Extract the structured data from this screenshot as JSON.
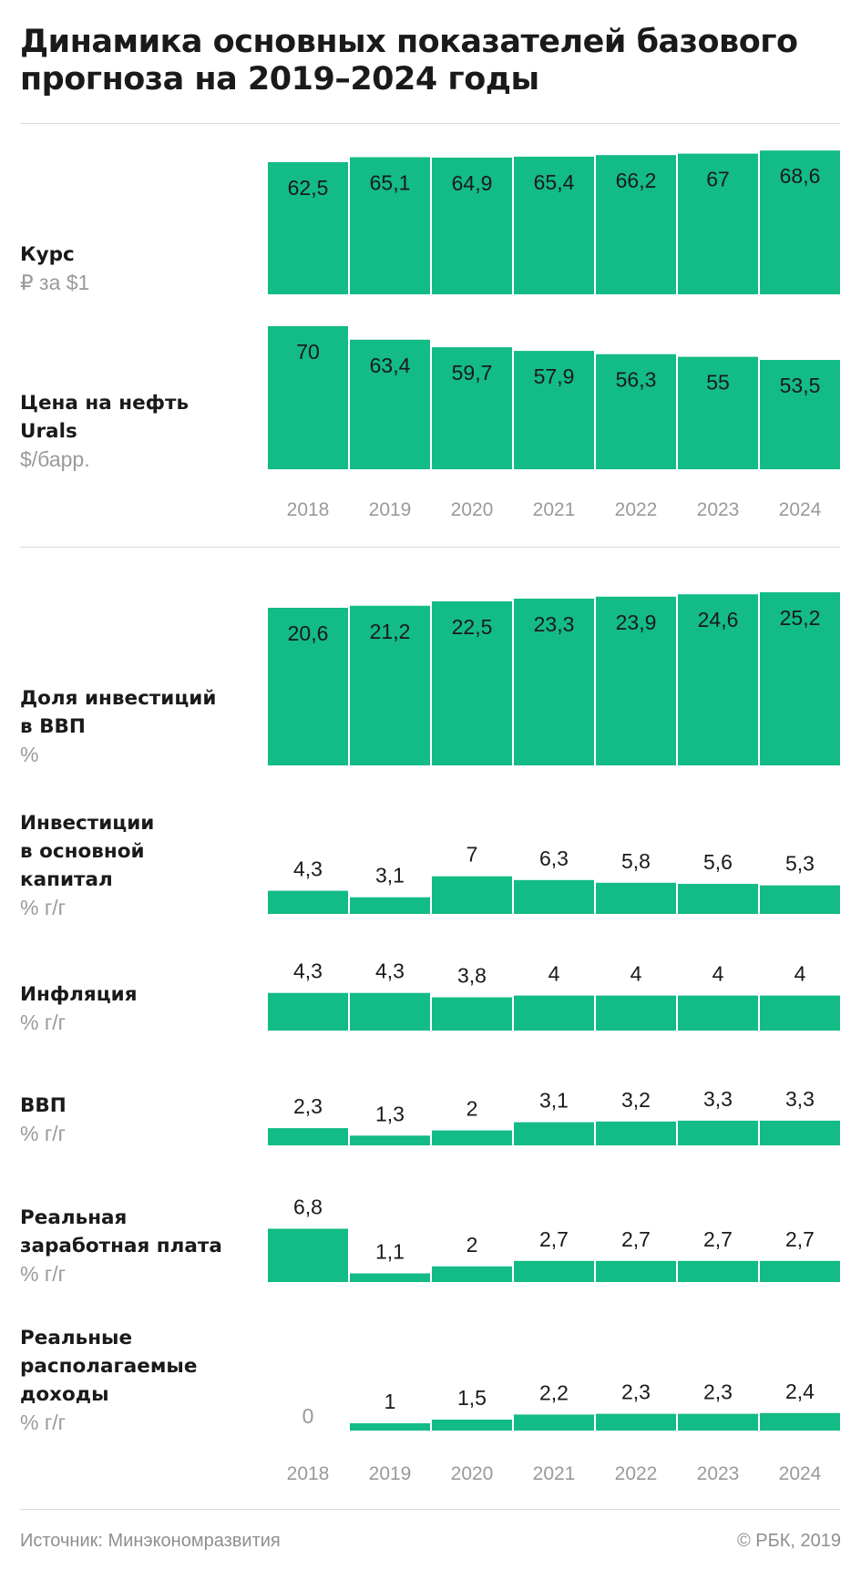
{
  "title": "Динамика основных показателей базового прогноза на 2019–2024 годы",
  "footer": {
    "source": "Источник: Минэкономразвития",
    "copyright": "© РБК, 2019"
  },
  "colors": {
    "bar": "#13bb86",
    "text": "#1a1a1a",
    "muted": "#9a9a9a",
    "rule": "#dcdcdc"
  },
  "chart_data": {
    "type": "bar",
    "categories": [
      "2018",
      "2019",
      "2020",
      "2021",
      "2022",
      "2023",
      "2024"
    ],
    "panels": [
      {
        "name": "Курс",
        "unit": "₽ за $1",
        "values": [
          62.5,
          65.1,
          64.9,
          65.4,
          66.2,
          67,
          68.6
        ],
        "labels": [
          "62,5",
          "65,1",
          "64,9",
          "65,4",
          "66,2",
          "67",
          "68,6"
        ]
      },
      {
        "name": "Цена на нефть Urals",
        "unit": "$/барр.",
        "values": [
          70,
          63.4,
          59.7,
          57.9,
          56.3,
          55,
          53.5
        ],
        "labels": [
          "70",
          "63,4",
          "59,7",
          "57,9",
          "56,3",
          "55",
          "53,5"
        ]
      },
      {
        "name": "Доля инвестиций в ВВП",
        "unit": "%",
        "values": [
          20.6,
          21.2,
          22.5,
          23.3,
          23.9,
          24.6,
          25.2
        ],
        "labels": [
          "20,6",
          "21,2",
          "22,5",
          "23,3",
          "23,9",
          "24,6",
          "25,2"
        ]
      },
      {
        "name": "Инвестиции в основной капитал",
        "unit": "% г/г",
        "values": [
          4.3,
          3.1,
          7,
          6.3,
          5.8,
          5.6,
          5.3
        ],
        "labels": [
          "4,3",
          "3,1",
          "7",
          "6,3",
          "5,8",
          "5,6",
          "5,3"
        ]
      },
      {
        "name": "Инфляция",
        "unit": "% г/г",
        "values": [
          4.3,
          4.3,
          3.8,
          4,
          4,
          4,
          4
        ],
        "labels": [
          "4,3",
          "4,3",
          "3,8",
          "4",
          "4",
          "4",
          "4"
        ]
      },
      {
        "name": "ВВП",
        "unit": "% г/г",
        "values": [
          2.3,
          1.3,
          2,
          3.1,
          3.2,
          3.3,
          3.3
        ],
        "labels": [
          "2,3",
          "1,3",
          "2",
          "3,1",
          "3,2",
          "3,3",
          "3,3"
        ]
      },
      {
        "name": "Реальная заработная плата",
        "unit": "% г/г",
        "values": [
          6.8,
          1.1,
          2,
          2.7,
          2.7,
          2.7,
          2.7
        ],
        "labels": [
          "6,8",
          "1,1",
          "2",
          "2,7",
          "2,7",
          "2,7",
          "2,7"
        ]
      },
      {
        "name": "Реальные располагаемые доходы",
        "unit": "% г/г",
        "values": [
          0,
          1,
          1.5,
          2.2,
          2.3,
          2.3,
          2.4
        ],
        "labels": [
          "0",
          "1",
          "1,5",
          "2,2",
          "2,3",
          "2,3",
          "2,4"
        ]
      }
    ]
  }
}
